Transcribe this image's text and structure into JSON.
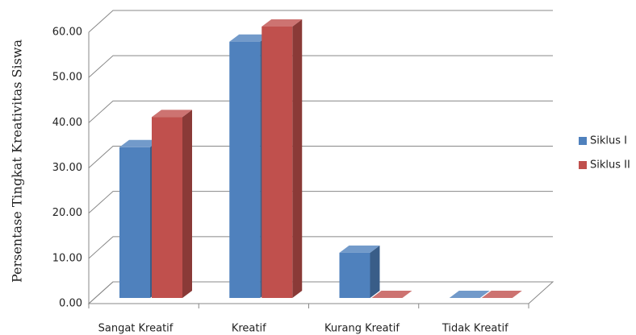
{
  "chart_data": {
    "type": "bar3d",
    "y_label": "Persentase Tingkat Kreativitas Siswa",
    "categories": [
      "Sangat Kreatif",
      "Kreatif",
      "Kurang Kreatif",
      "Tidak Kreatif"
    ],
    "series": [
      {
        "name": "Siklus I",
        "color": "#4f81bd",
        "values": [
          33.33,
          56.67,
          10,
          0
        ]
      },
      {
        "name": "Siklus II",
        "color": "#c0504d",
        "values": [
          40,
          60,
          0,
          0
        ]
      }
    ],
    "ylim": [
      0,
      60
    ],
    "yticks": [
      {
        "value": 0,
        "label": "0.00"
      },
      {
        "value": 10,
        "label": "10.00"
      },
      {
        "value": 20,
        "label": "20.00"
      },
      {
        "value": 30,
        "label": "30.00"
      },
      {
        "value": 40,
        "label": "40.00"
      },
      {
        "value": 50,
        "label": "50.00"
      },
      {
        "value": 60,
        "label": "60.00"
      }
    ],
    "grid": true,
    "legend": "right"
  }
}
